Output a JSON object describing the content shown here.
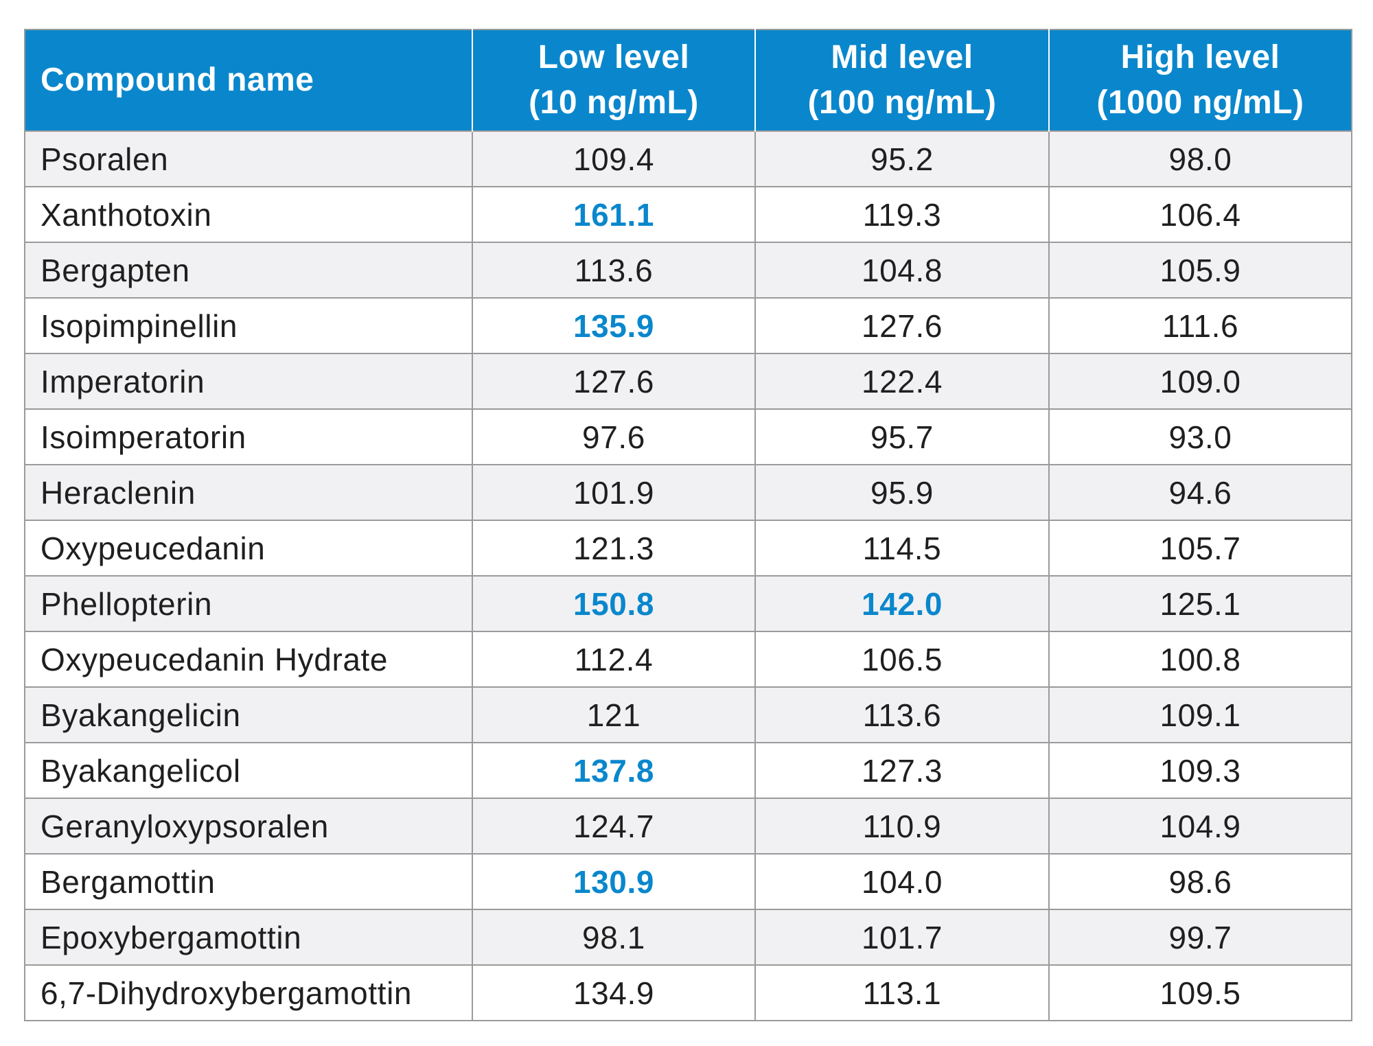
{
  "table": {
    "headers": [
      {
        "line1": "Compound name",
        "line2": ""
      },
      {
        "line1": "Low level",
        "line2": "(10 ng/mL)"
      },
      {
        "line1": "Mid level",
        "line2": "(100 ng/mL)"
      },
      {
        "line1": "High level",
        "line2": "(1000 ng/mL)"
      }
    ],
    "highlight_color": "#0a87cc",
    "header_color": "#0a87cc",
    "rows": [
      {
        "name": "Psoralen",
        "low": "109.4",
        "mid": "95.2",
        "high": "98.0",
        "low_highlight": false,
        "mid_highlight": false
      },
      {
        "name": "Xanthotoxin",
        "low": "161.1",
        "mid": "119.3",
        "high": "106.4",
        "low_highlight": true,
        "mid_highlight": false
      },
      {
        "name": "Bergapten",
        "low": "113.6",
        "mid": "104.8",
        "high": "105.9",
        "low_highlight": false,
        "mid_highlight": false
      },
      {
        "name": "Isopimpinellin",
        "low": "135.9",
        "mid": "127.6",
        "high": "111.6",
        "low_highlight": true,
        "mid_highlight": false
      },
      {
        "name": "Imperatorin",
        "low": "127.6",
        "mid": "122.4",
        "high": "109.0",
        "low_highlight": false,
        "mid_highlight": false
      },
      {
        "name": "Isoimperatorin",
        "low": "97.6",
        "mid": "95.7",
        "high": "93.0",
        "low_highlight": false,
        "mid_highlight": false
      },
      {
        "name": "Heraclenin",
        "low": "101.9",
        "mid": "95.9",
        "high": "94.6",
        "low_highlight": false,
        "mid_highlight": false
      },
      {
        "name": "Oxypeucedanin",
        "low": "121.3",
        "mid": "114.5",
        "high": "105.7",
        "low_highlight": false,
        "mid_highlight": false
      },
      {
        "name": "Phellopterin",
        "low": "150.8",
        "mid": "142.0",
        "high": "125.1",
        "low_highlight": true,
        "mid_highlight": true
      },
      {
        "name": "Oxypeucedanin Hydrate",
        "low": "112.4",
        "mid": "106.5",
        "high": "100.8",
        "low_highlight": false,
        "mid_highlight": false
      },
      {
        "name": "Byakangelicin",
        "low": "121",
        "mid": "113.6",
        "high": "109.1",
        "low_highlight": false,
        "mid_highlight": false
      },
      {
        "name": "Byakangelicol",
        "low": "137.8",
        "mid": "127.3",
        "high": "109.3",
        "low_highlight": true,
        "mid_highlight": false
      },
      {
        "name": "Geranyloxypsoralen",
        "low": "124.7",
        "mid": "110.9",
        "high": "104.9",
        "low_highlight": false,
        "mid_highlight": false
      },
      {
        "name": "Bergamottin",
        "low": "130.9",
        "mid": "104.0",
        "high": "98.6",
        "low_highlight": true,
        "mid_highlight": false
      },
      {
        "name": "Epoxybergamottin",
        "low": "98.1",
        "mid": "101.7",
        "high": "99.7",
        "low_highlight": false,
        "mid_highlight": false
      },
      {
        "name": "6,7-Dihydroxybergamottin",
        "low": "134.9",
        "mid": "113.1",
        "high": "109.5",
        "low_highlight": false,
        "mid_highlight": false
      }
    ]
  }
}
